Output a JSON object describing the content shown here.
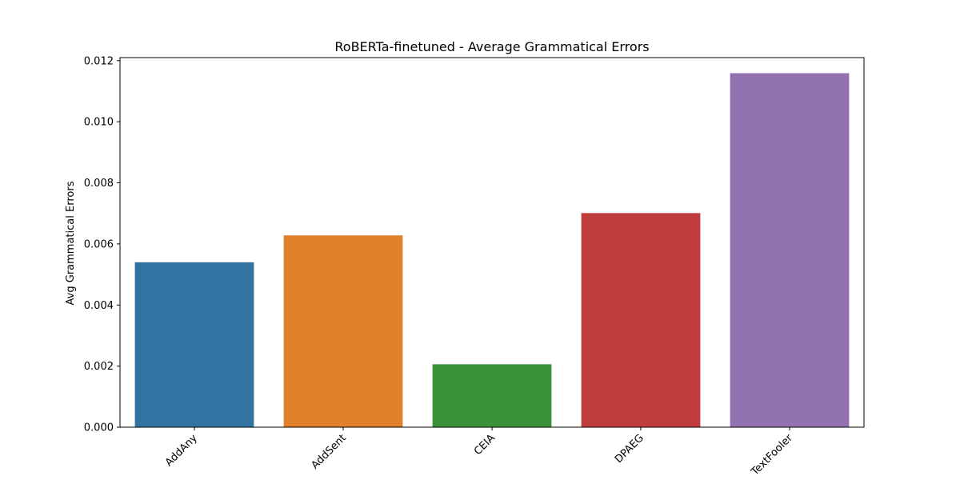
{
  "chart_data": {
    "type": "bar",
    "title": "RoBERTa-finetuned - Average Grammatical Errors",
    "xlabel": "",
    "ylabel": "Avg Grammatical Errors",
    "categories": [
      "AddAny",
      "AddSent",
      "CEIA",
      "DPAEG",
      "TextFooler"
    ],
    "values": [
      0.0054,
      0.00628,
      0.00206,
      0.00701,
      0.01159
    ],
    "colors": [
      "#3274a1",
      "#e1812c",
      "#3a923a",
      "#c03d3e",
      "#9372b2"
    ],
    "ylim": [
      0,
      0.0121
    ],
    "yticks": [
      0.0,
      0.002,
      0.004,
      0.006,
      0.008,
      0.01,
      0.012
    ],
    "ytick_labels": [
      "0.000",
      "0.002",
      "0.004",
      "0.006",
      "0.008",
      "0.010",
      "0.012"
    ],
    "grid": false,
    "legend": "none"
  }
}
